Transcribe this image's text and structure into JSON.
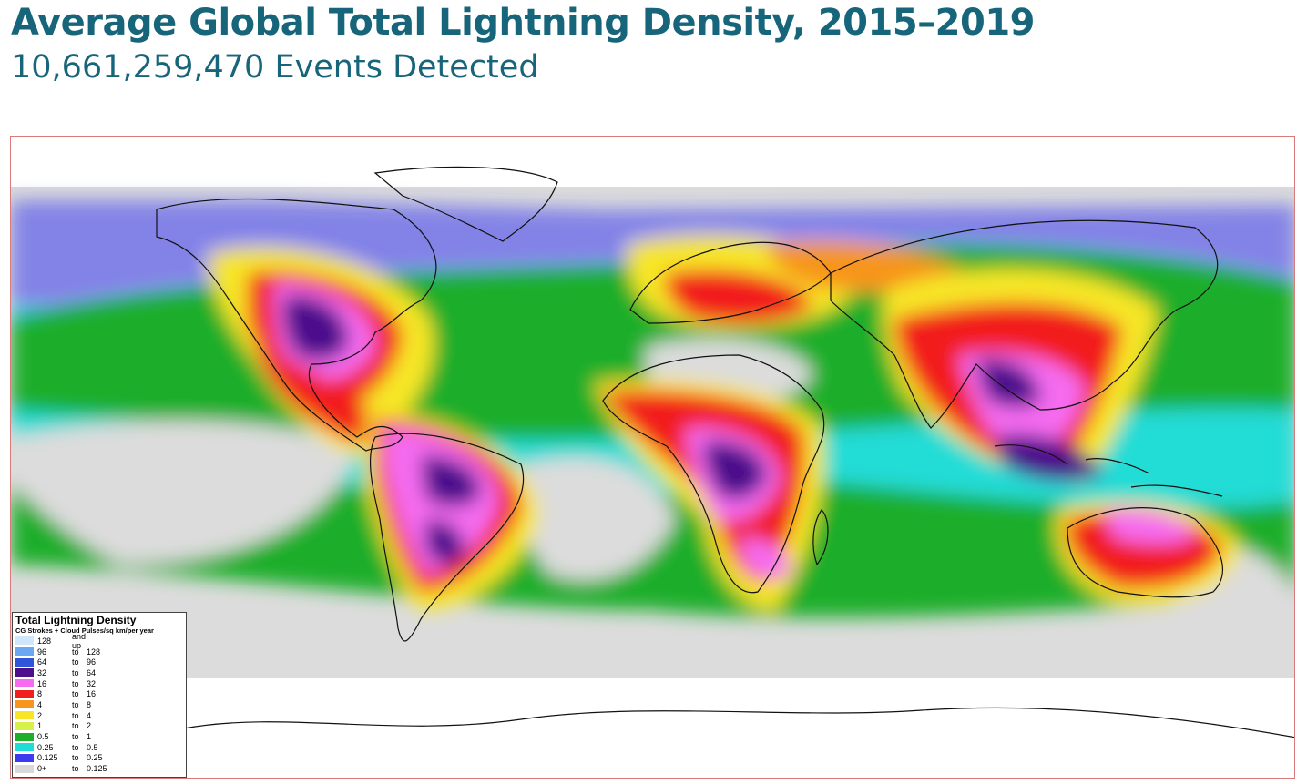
{
  "title": "Average Global Total Lightning Density, 2015–2019",
  "subtitle": "10,661,259,470 Events Detected",
  "legend": {
    "title": "Total Lightning Density",
    "subtitle": "CG Strokes + Cloud Pulses/sq km/per year",
    "rows": [
      {
        "low": "128",
        "to": "and up",
        "high": "",
        "color": "#cfe6fb"
      },
      {
        "low": "96",
        "to": "to",
        "high": "128",
        "color": "#6aa8f4"
      },
      {
        "low": "64",
        "to": "to",
        "high": "96",
        "color": "#2d56d8"
      },
      {
        "low": "32",
        "to": "to",
        "high": "64",
        "color": "#4b0f8c"
      },
      {
        "low": "16",
        "to": "to",
        "high": "32",
        "color": "#f56cf0"
      },
      {
        "low": "8",
        "to": "to",
        "high": "16",
        "color": "#f21d1d"
      },
      {
        "low": "4",
        "to": "to",
        "high": "8",
        "color": "#f7951e"
      },
      {
        "low": "2",
        "to": "to",
        "high": "4",
        "color": "#f7e625"
      },
      {
        "low": "1",
        "to": "to",
        "high": "2",
        "color": "#d7f04a"
      },
      {
        "low": "0.5",
        "to": "to",
        "high": "1",
        "color": "#1fae2b"
      },
      {
        "low": "0.25",
        "to": "to",
        "high": "0.5",
        "color": "#21dcd6"
      },
      {
        "low": "0.125",
        "to": "to",
        "high": "0.25",
        "color": "#3b3bf0"
      },
      {
        "low": "0+",
        "to": "to",
        "high": "0.125",
        "color": "#d9d9d9"
      }
    ]
  },
  "colors": {
    "title": "#17657a",
    "frame": "#d97b7b",
    "coast": "#111111"
  }
}
